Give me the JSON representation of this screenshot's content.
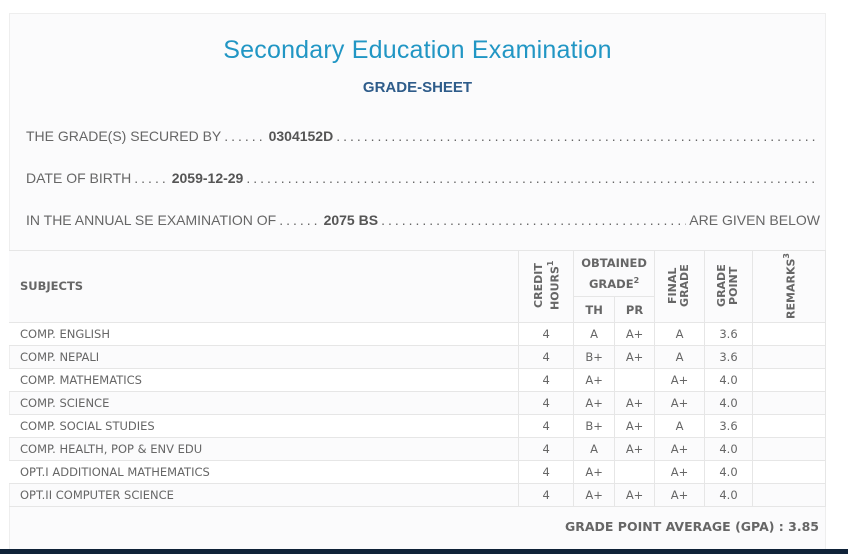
{
  "header": {
    "title": "Secondary Education Examination",
    "subtitle": "GRADE-SHEET"
  },
  "info": {
    "secured_by_label": "THE GRADE(S) SECURED BY",
    "secured_by_value": "0304152D",
    "dob_label": "DATE OF BIRTH",
    "dob_value": "2059-12-29",
    "exam_label": "IN THE ANNUAL SE EXAMINATION OF",
    "exam_value": "2075 BS",
    "exam_suffix": "ARE GIVEN BELOW"
  },
  "table": {
    "headers": {
      "subjects": "SUBJECTS",
      "credit": "CREDIT HOURS",
      "credit_sup": "1",
      "obtained": "OBTAINED GRADE",
      "obtained_sup": "2",
      "th": "TH",
      "pr": "PR",
      "final": "FINAL GRADE",
      "point": "GRADE POINT",
      "remarks": "REMARKS",
      "remarks_sup": "3"
    },
    "rows": [
      {
        "subject": "COMP. ENGLISH",
        "credit": "4",
        "th": "A",
        "pr": "A+",
        "final": "A",
        "point": "3.6",
        "remarks": ""
      },
      {
        "subject": "COMP. NEPALI",
        "credit": "4",
        "th": "B+",
        "pr": "A+",
        "final": "A",
        "point": "3.6",
        "remarks": ""
      },
      {
        "subject": "COMP. MATHEMATICS",
        "credit": "4",
        "th": "A+",
        "pr": "",
        "final": "A+",
        "point": "4.0",
        "remarks": ""
      },
      {
        "subject": "COMP. SCIENCE",
        "credit": "4",
        "th": "A+",
        "pr": "A+",
        "final": "A+",
        "point": "4.0",
        "remarks": ""
      },
      {
        "subject": "COMP. SOCIAL STUDIES",
        "credit": "4",
        "th": "B+",
        "pr": "A+",
        "final": "A",
        "point": "3.6",
        "remarks": ""
      },
      {
        "subject": "COMP. HEALTH, POP & ENV EDU",
        "credit": "4",
        "th": "A",
        "pr": "A+",
        "final": "A+",
        "point": "4.0",
        "remarks": ""
      },
      {
        "subject": "OPT.I ADDITIONAL MATHEMATICS",
        "credit": "4",
        "th": "A+",
        "pr": "",
        "final": "A+",
        "point": "4.0",
        "remarks": ""
      },
      {
        "subject": "OPT.II COMPUTER SCIENCE",
        "credit": "4",
        "th": "A+",
        "pr": "A+",
        "final": "A+",
        "point": "4.0",
        "remarks": ""
      }
    ]
  },
  "gpa": "GRADE POINT AVERAGE (GPA) : 3.85"
}
